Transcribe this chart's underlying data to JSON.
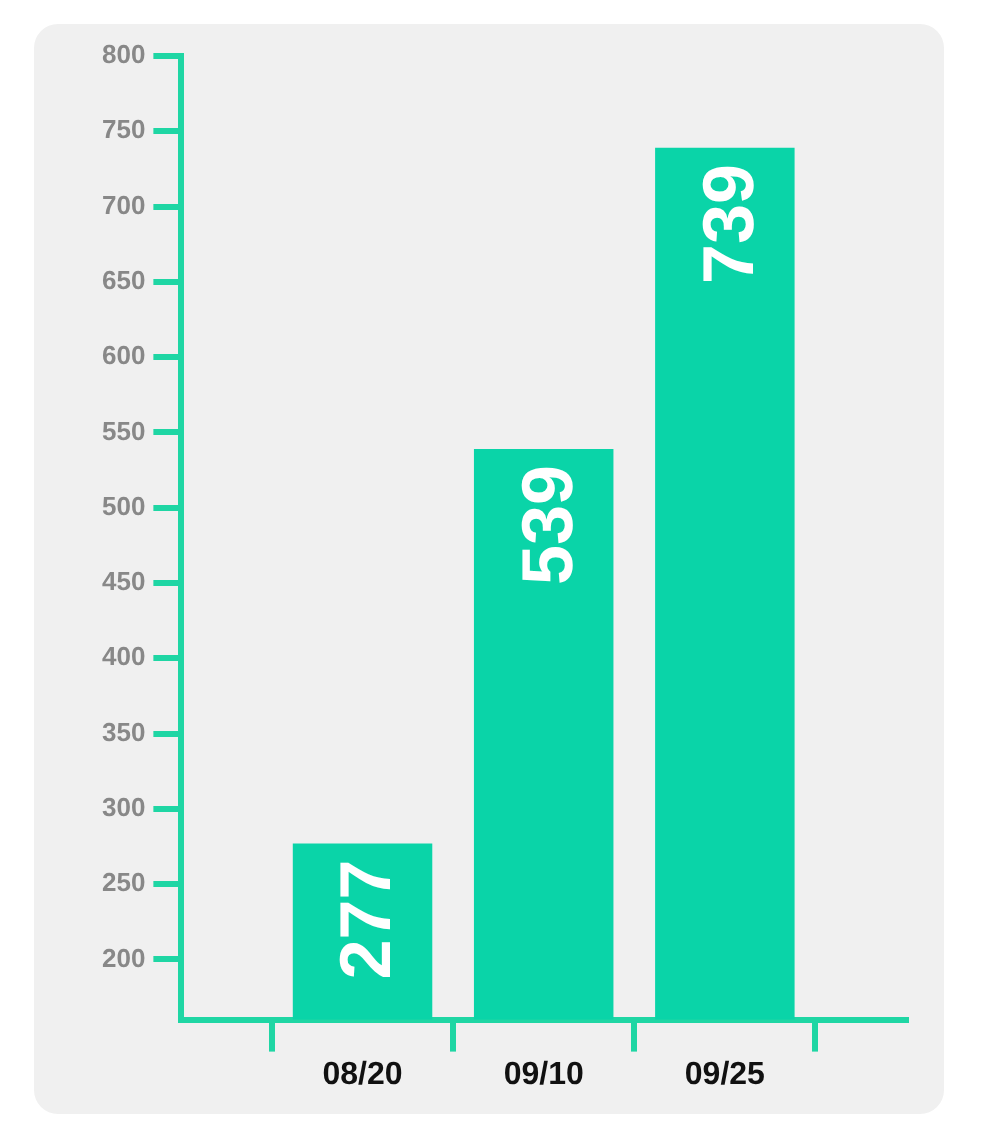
{
  "chart_data": {
    "type": "bar",
    "categories": [
      null,
      "08/20",
      "09/10",
      "09/25",
      null
    ],
    "values": [
      null,
      277,
      539,
      739,
      null
    ],
    "color": "#0ad4a8",
    "ylim": [
      160,
      800
    ],
    "yticks": [
      200,
      250,
      300,
      350,
      400,
      450,
      500,
      550,
      600,
      650,
      700,
      750,
      800
    ],
    "data_labels": true
  }
}
